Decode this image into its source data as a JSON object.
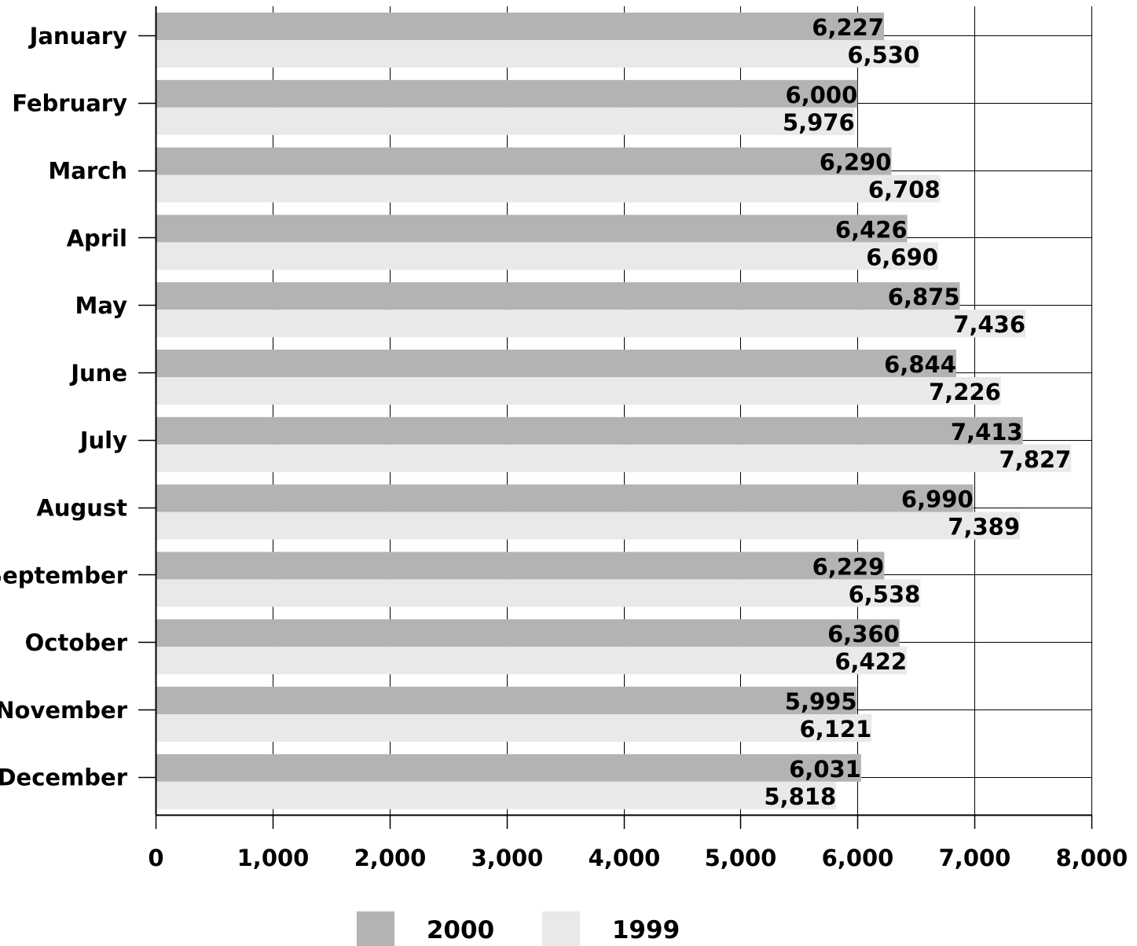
{
  "chart_data": {
    "type": "bar",
    "orientation": "horizontal",
    "categories": [
      "January",
      "February",
      "March",
      "April",
      "May",
      "June",
      "July",
      "August",
      "September",
      "October",
      "November",
      "December"
    ],
    "series": [
      {
        "name": "2000",
        "color": "#b3b3b3",
        "values": [
          6227,
          6000,
          6290,
          6426,
          6875,
          6844,
          7413,
          6990,
          6229,
          6360,
          5995,
          6031
        ],
        "labels": [
          "6,227",
          "6,000",
          "6,290",
          "6,426",
          "6,875",
          "6,844",
          "7,413",
          "6,990",
          "6,229",
          "6,360",
          "5,995",
          "6,031"
        ]
      },
      {
        "name": "1999",
        "color": "#e9e9e9",
        "values": [
          6530,
          5976,
          6708,
          6690,
          7436,
          7226,
          7827,
          7389,
          6538,
          6422,
          6121,
          5818
        ],
        "labels": [
          "6,530",
          "5,976",
          "6,708",
          "6,690",
          "7,436",
          "7,226",
          "7,827",
          "7,389",
          "6,538",
          "6,422",
          "6,121",
          "5,818"
        ]
      }
    ],
    "xlim": [
      0,
      8000
    ],
    "xticks": [
      0,
      1000,
      2000,
      3000,
      4000,
      5000,
      6000,
      7000,
      8000
    ],
    "xtick_labels": [
      "0",
      "1,000",
      "2,000",
      "3,000",
      "4,000",
      "5,000",
      "6,000",
      "7,000",
      "8,000"
    ],
    "grid": true,
    "legend_position": "bottom-center",
    "data_labels": true
  }
}
